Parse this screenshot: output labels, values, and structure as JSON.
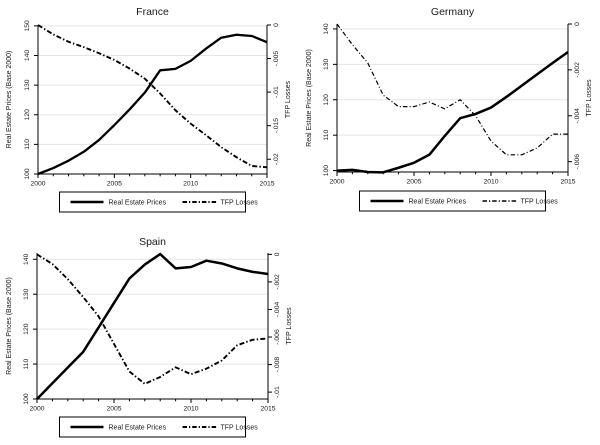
{
  "figure": {
    "background": "#ffffff"
  },
  "style": {
    "line_color": "#000000",
    "grid_color": "#dde7ef",
    "title_color": "#2a3560",
    "axis_color": "#000000",
    "label_color": "#1a1a1a",
    "legend_bg": "#ffffff"
  },
  "chart_data": [
    {
      "id": "france",
      "type": "line",
      "title": "France",
      "x": [
        2000,
        2001,
        2002,
        2003,
        2004,
        2005,
        2006,
        2007,
        2008,
        2009,
        2010,
        2011,
        2012,
        2013,
        2014,
        2015
      ],
      "x_ticks": [
        2000,
        2005,
        2010,
        2015
      ],
      "x_tick_labels": [
        "2000",
        "2005",
        "2010",
        "2015"
      ],
      "left_axis": {
        "title": "Real Estate Prices (Base 2000)",
        "ticks": [
          100,
          110,
          120,
          130,
          140,
          150
        ],
        "tick_labels": [
          "100",
          "110",
          "120",
          "130",
          "140",
          "150"
        ],
        "range": [
          100,
          150.3
        ]
      },
      "right_axis": {
        "title": "TFP Losses",
        "ticks": [
          0,
          -0.005,
          -0.01,
          -0.015,
          -0.02
        ],
        "tick_labels": [
          "0",
          "-.005",
          "-.01",
          "-.015",
          "-.02"
        ],
        "range": [
          -0.0222,
          0
        ]
      },
      "series": [
        {
          "name": "Real Estate Prices",
          "axis": "left",
          "line": "solid",
          "values": [
            100,
            102,
            104.5,
            107.5,
            111.5,
            116.5,
            121.8,
            127.5,
            135,
            135.5,
            138.2,
            142.3,
            146,
            147,
            146.6,
            144.5
          ]
        },
        {
          "name": "TFP Losses",
          "axis": "right",
          "line": "dash-dot",
          "values": [
            0,
            -0.0014,
            -0.0025,
            -0.0033,
            -0.0042,
            -0.0052,
            -0.0065,
            -0.008,
            -0.0102,
            -0.0127,
            -0.0147,
            -0.0164,
            -0.0182,
            -0.0197,
            -0.021,
            -0.0212
          ]
        }
      ],
      "legend": {
        "position": "bottom",
        "labels": [
          "Real Estate Prices",
          "TFP Losses"
        ]
      }
    },
    {
      "id": "germany",
      "type": "line",
      "title": "Germany",
      "x": [
        2000,
        2001,
        2002,
        2003,
        2004,
        2005,
        2006,
        2007,
        2008,
        2009,
        2010,
        2011,
        2012,
        2013,
        2014,
        2015
      ],
      "x_ticks": [
        2000,
        2005,
        2010,
        2015
      ],
      "x_tick_labels": [
        "2000",
        "2005",
        "2010",
        "2015"
      ],
      "left_axis": {
        "title": "Real Estate Prices (Base 2000)",
        "ticks": [
          100,
          110,
          120,
          130,
          140
        ],
        "tick_labels": [
          "100",
          "110",
          "120",
          "130",
          "140"
        ],
        "range": [
          99.6,
          141.4
        ]
      },
      "right_axis": {
        "title": "TFP Losses",
        "ticks": [
          0,
          -0.002,
          -0.004,
          -0.006
        ],
        "tick_labels": [
          "0",
          "-.002",
          "-.004",
          "-.006"
        ],
        "range": [
          -0.00645,
          0
        ]
      },
      "series": [
        {
          "name": "Real Estate Prices",
          "axis": "left",
          "line": "solid",
          "values": [
            100,
            100.2,
            99.6,
            99.5,
            100.8,
            102.2,
            104.5,
            109.8,
            114.8,
            116,
            117.8,
            120.8,
            124,
            127.2,
            130.4,
            133.5
          ]
        },
        {
          "name": "TFP Losses",
          "axis": "right",
          "line": "dash-dot",
          "values": [
            0,
            -0.0009,
            -0.0017,
            -0.0031,
            -0.0036,
            -0.0036,
            -0.0034,
            -0.0037,
            -0.0033,
            -0.004,
            -0.0051,
            -0.0057,
            -0.0057,
            -0.0054,
            -0.0048,
            -0.0048
          ]
        }
      ],
      "legend": {
        "position": "bottom",
        "labels": [
          "Real Estate Prices",
          "TFP Losses"
        ]
      }
    },
    {
      "id": "spain",
      "type": "line",
      "title": "Spain",
      "x": [
        2000,
        2001,
        2002,
        2003,
        2004,
        2005,
        2006,
        2007,
        2008,
        2009,
        2010,
        2011,
        2012,
        2013,
        2014,
        2015
      ],
      "x_ticks": [
        2000,
        2005,
        2010,
        2015
      ],
      "x_tick_labels": [
        "2000",
        "2005",
        "2010",
        "2015"
      ],
      "left_axis": {
        "title": "Real Estate Prices (Base 2000)",
        "ticks": [
          100,
          110,
          120,
          130,
          140
        ],
        "tick_labels": [
          "100",
          "110",
          "120",
          "130",
          "140"
        ],
        "range": [
          100,
          141.8
        ]
      },
      "right_axis": {
        "title": "TFP Losses",
        "ticks": [
          0,
          -0.002,
          -0.004,
          -0.006,
          -0.008,
          -0.01
        ],
        "tick_labels": [
          "0",
          "-.002",
          "-.004",
          "-.006",
          "-.008",
          "-.01"
        ],
        "range": [
          -0.0105,
          0.0001
        ]
      },
      "series": [
        {
          "name": "Real Estate Prices",
          "axis": "left",
          "line": "solid",
          "values": [
            100,
            104.5,
            109,
            113.5,
            120.5,
            127.5,
            134.5,
            138.5,
            141.5,
            137.4,
            137.8,
            139.6,
            138.8,
            137.4,
            136.4,
            135.8
          ]
        },
        {
          "name": "TFP Losses",
          "axis": "right",
          "line": "dash-dot",
          "values": [
            0,
            -0.0007,
            -0.0018,
            -0.0031,
            -0.0045,
            -0.0065,
            -0.0085,
            -0.0094,
            -0.0089,
            -0.0082,
            -0.0087,
            -0.0083,
            -0.0077,
            -0.0066,
            -0.0062,
            -0.0061
          ]
        }
      ],
      "legend": {
        "position": "bottom",
        "labels": [
          "Real Estate Prices",
          "TFP Losses"
        ]
      }
    }
  ]
}
